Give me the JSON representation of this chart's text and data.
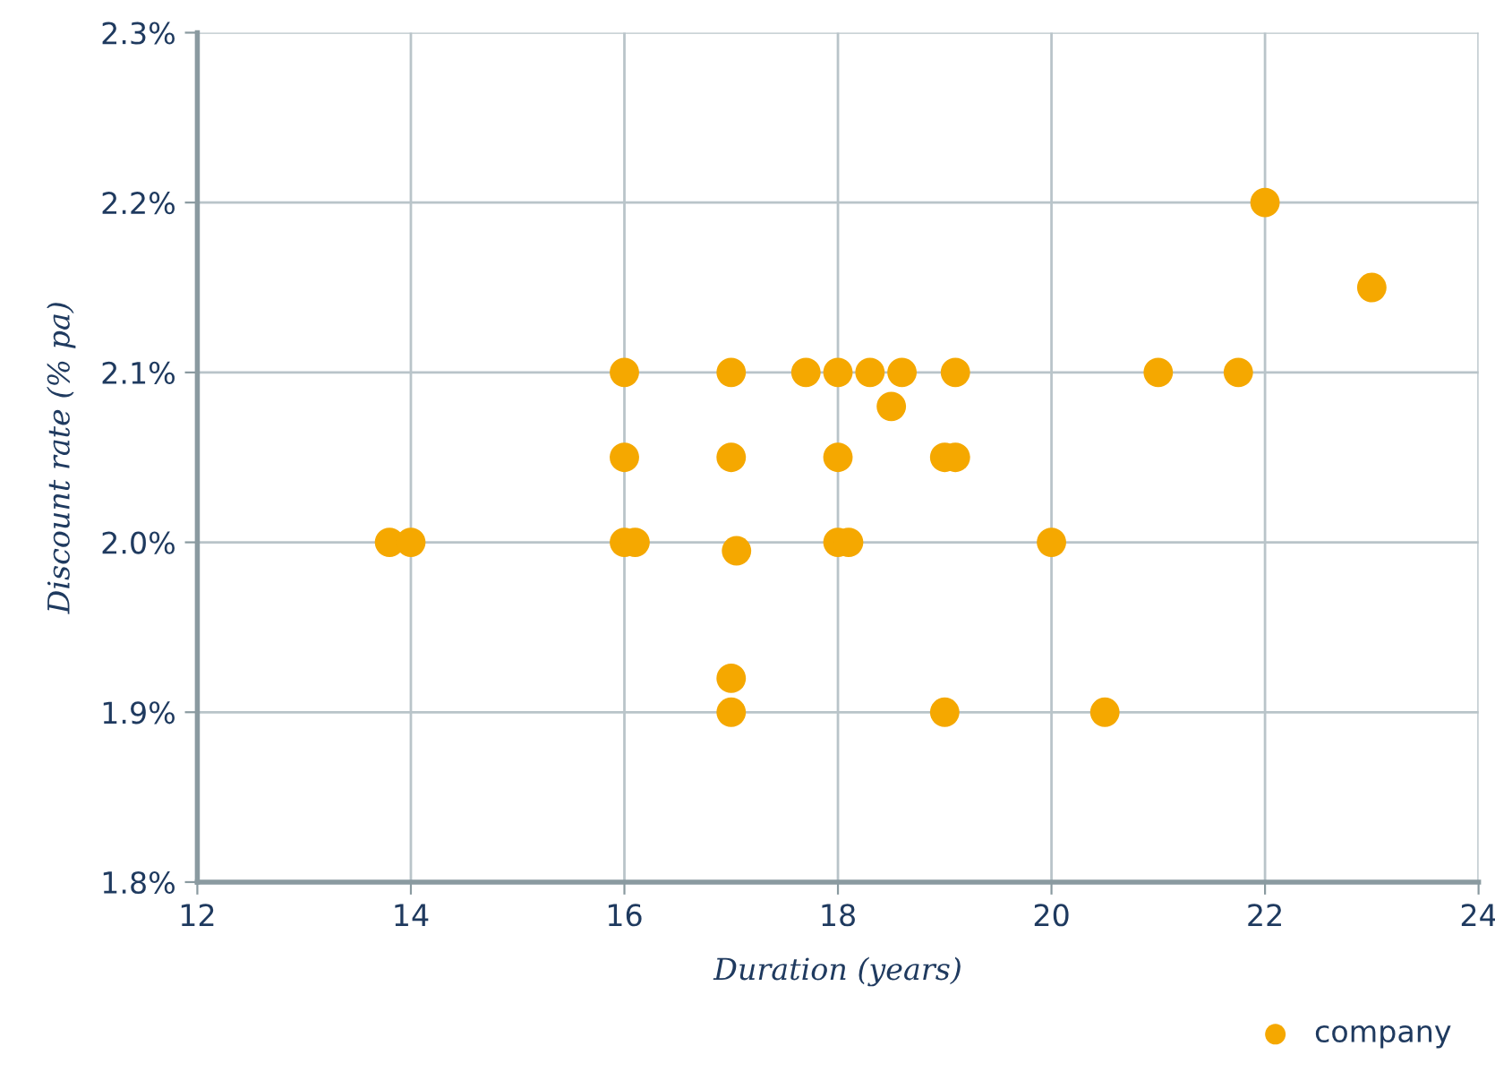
{
  "chart_data": {
    "type": "scatter",
    "xlabel": "Duration (years)",
    "ylabel": "Discount rate (% pa)",
    "xlim": [
      12,
      24
    ],
    "xticks": [
      12,
      14,
      16,
      18,
      20,
      22,
      24
    ],
    "ylim": [
      1.8,
      2.3
    ],
    "yticks": [
      {
        "value": 1.8,
        "label": "1.8%"
      },
      {
        "value": 1.9,
        "label": "1.9%"
      },
      {
        "value": 2.0,
        "label": "2.0%"
      },
      {
        "value": 2.1,
        "label": "2.1%"
      },
      {
        "value": 2.2,
        "label": "2.2%"
      },
      {
        "value": 2.3,
        "label": "2.3%"
      }
    ],
    "grid": true,
    "legend": "bottom right",
    "marker": "circle",
    "series": [
      {
        "name": "company",
        "color": "#f5a800",
        "x": [
          13.8,
          14,
          16,
          16,
          16,
          16.1,
          17,
          17,
          17.05,
          17,
          17,
          17.7,
          18,
          18,
          18,
          18.1,
          18.3,
          18.5,
          18.6,
          19.1,
          19,
          19.1,
          19,
          20,
          20.5,
          21,
          21.75,
          22,
          23
        ],
        "values": [
          2.0,
          2.0,
          2.1,
          2.05,
          2.0,
          2.0,
          2.1,
          2.05,
          1.995,
          1.92,
          1.9,
          2.1,
          2.1,
          2.05,
          2.0,
          2.0,
          2.1,
          2.08,
          2.1,
          2.1,
          2.05,
          2.05,
          1.9,
          2.0,
          1.9,
          2.1,
          2.1,
          2.2,
          2.15
        ]
      }
    ]
  }
}
